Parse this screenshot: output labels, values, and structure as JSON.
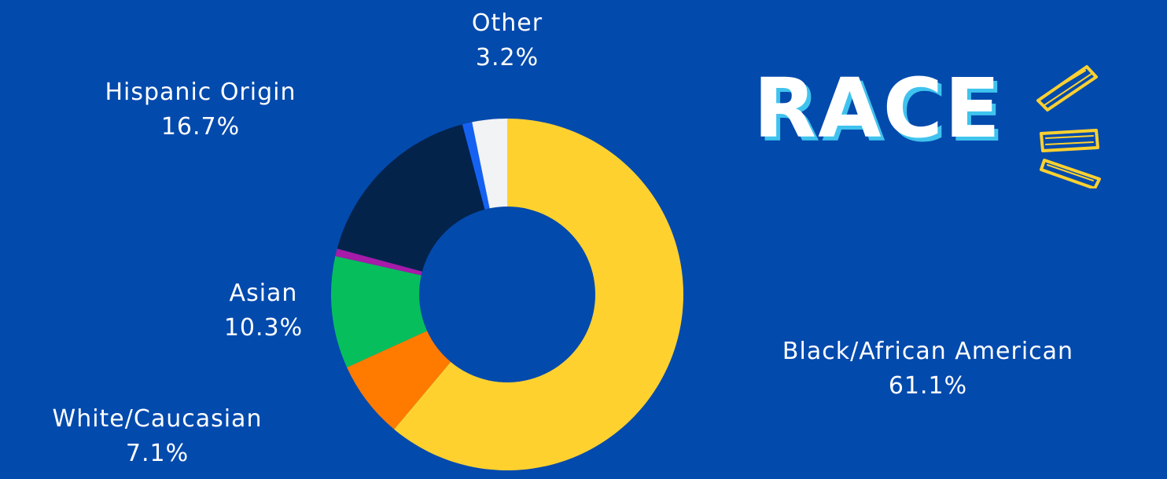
{
  "chart_data": {
    "type": "pie",
    "variant": "donut",
    "title": "RACE",
    "slices": [
      {
        "label": "Black/African American",
        "value": 61.1,
        "value_label": "61.1%",
        "color": "#FED12F"
      },
      {
        "label": "White/Caucasian",
        "value": 7.1,
        "value_label": "7.1%",
        "color": "#FF7B00"
      },
      {
        "label": "Asian",
        "value": 10.3,
        "value_label": "10.3%",
        "color": "#06BF5C"
      },
      {
        "label": "",
        "value": 0.7,
        "value_label": "",
        "color": "#A61BA8"
      },
      {
        "label": "Hispanic Origin",
        "value": 16.7,
        "value_label": "16.7%",
        "color": "#03234B"
      },
      {
        "label": "",
        "value": 0.9,
        "value_label": "",
        "color": "#1562F2"
      },
      {
        "label": "Other",
        "value": 3.2,
        "value_label": "3.2%",
        "color": "#F2F3F5"
      }
    ],
    "start_angle_deg": 0,
    "direction": "clockwise",
    "legend": "none"
  },
  "colors": {
    "background": "#034AAD",
    "text": "#FFFFFF",
    "title_shadow": "#3FC3EE",
    "decoration": "#FED12F"
  }
}
